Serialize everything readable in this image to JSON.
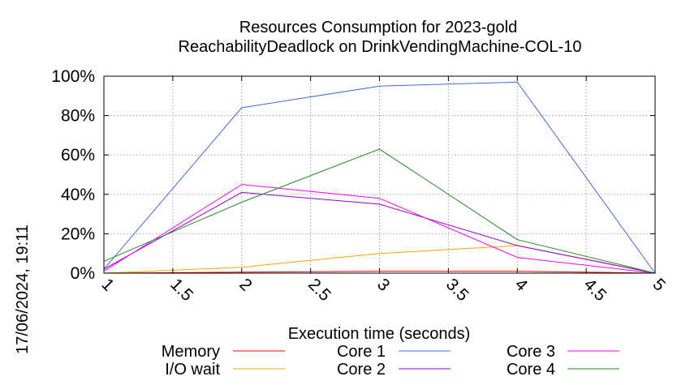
{
  "chart_data": {
    "type": "line",
    "title": "Resources Consumption for 2023-gold",
    "subtitle": "ReachabilityDeadlock on DrinkVendingMachine-COL-10",
    "xlabel": "Execution time (seconds)",
    "ylabel": "",
    "timestamp": "17/06/2024, 19:11",
    "xlim": [
      1,
      5
    ],
    "ylim": [
      0,
      100
    ],
    "x_ticks": [
      "1",
      "1.5",
      "2",
      "2.5",
      "3",
      "3.5",
      "4",
      "4.5",
      "5"
    ],
    "y_ticks": [
      "0%",
      "20%",
      "40%",
      "60%",
      "80%",
      "100%"
    ],
    "grid": true,
    "legend_position": "bottom",
    "series": [
      {
        "name": "Memory",
        "color": "#ff0000",
        "x": [
          1,
          2,
          3,
          4,
          5
        ],
        "y": [
          0,
          0.5,
          1,
          1,
          0
        ]
      },
      {
        "name": "I/O wait",
        "color": "#ffa500",
        "x": [
          1,
          2,
          3,
          4,
          5
        ],
        "y": [
          0,
          3,
          10,
          14,
          0
        ]
      },
      {
        "name": "Core 1",
        "color": "#4169e1",
        "x": [
          1,
          2,
          3,
          4,
          5
        ],
        "y": [
          2,
          84,
          95,
          97,
          0
        ]
      },
      {
        "name": "Core 2",
        "color": "#9400d3",
        "x": [
          1,
          2,
          3,
          4,
          5
        ],
        "y": [
          2,
          41,
          35,
          14,
          0
        ]
      },
      {
        "name": "Core 3",
        "color": "#ff00ff",
        "x": [
          1,
          2,
          3,
          4,
          5
        ],
        "y": [
          1,
          45,
          38,
          8,
          0
        ]
      },
      {
        "name": "Core 4",
        "color": "#228b22",
        "x": [
          1,
          2,
          3,
          4,
          5
        ],
        "y": [
          6,
          36,
          63,
          17,
          0
        ]
      }
    ]
  }
}
